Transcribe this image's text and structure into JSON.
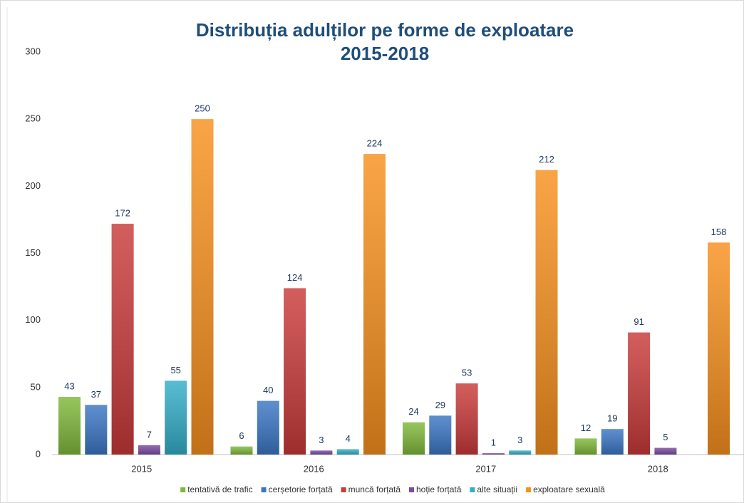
{
  "chart_data": {
    "type": "bar",
    "title": [
      "Distribuția adulților pe forme de exploatare",
      "2015-2018"
    ],
    "categories": [
      "2015",
      "2016",
      "2017",
      "2018"
    ],
    "series": [
      {
        "name": "tentativă de trafic",
        "color": "#7fb83a",
        "values": [
          43,
          6,
          24,
          12
        ]
      },
      {
        "name": "cerșetorie forțată",
        "color": "#3a76c4",
        "values": [
          37,
          40,
          29,
          19
        ]
      },
      {
        "name": "muncă forțată",
        "color": "#c93a3a",
        "values": [
          172,
          124,
          53,
          91
        ]
      },
      {
        "name": "hoție forțată",
        "color": "#7a4ca0",
        "values": [
          7,
          3,
          1,
          5
        ]
      },
      {
        "name": "alte situații",
        "color": "#33adc8",
        "values": [
          55,
          4,
          3,
          null
        ]
      },
      {
        "name": "exploatare sexuală",
        "color": "#f7901e",
        "values": [
          250,
          224,
          212,
          158
        ]
      }
    ],
    "ylim": [
      0,
      300
    ],
    "yticks": [
      0,
      50,
      100,
      150,
      200,
      250,
      300
    ],
    "grid": false,
    "legend": "bottom"
  }
}
